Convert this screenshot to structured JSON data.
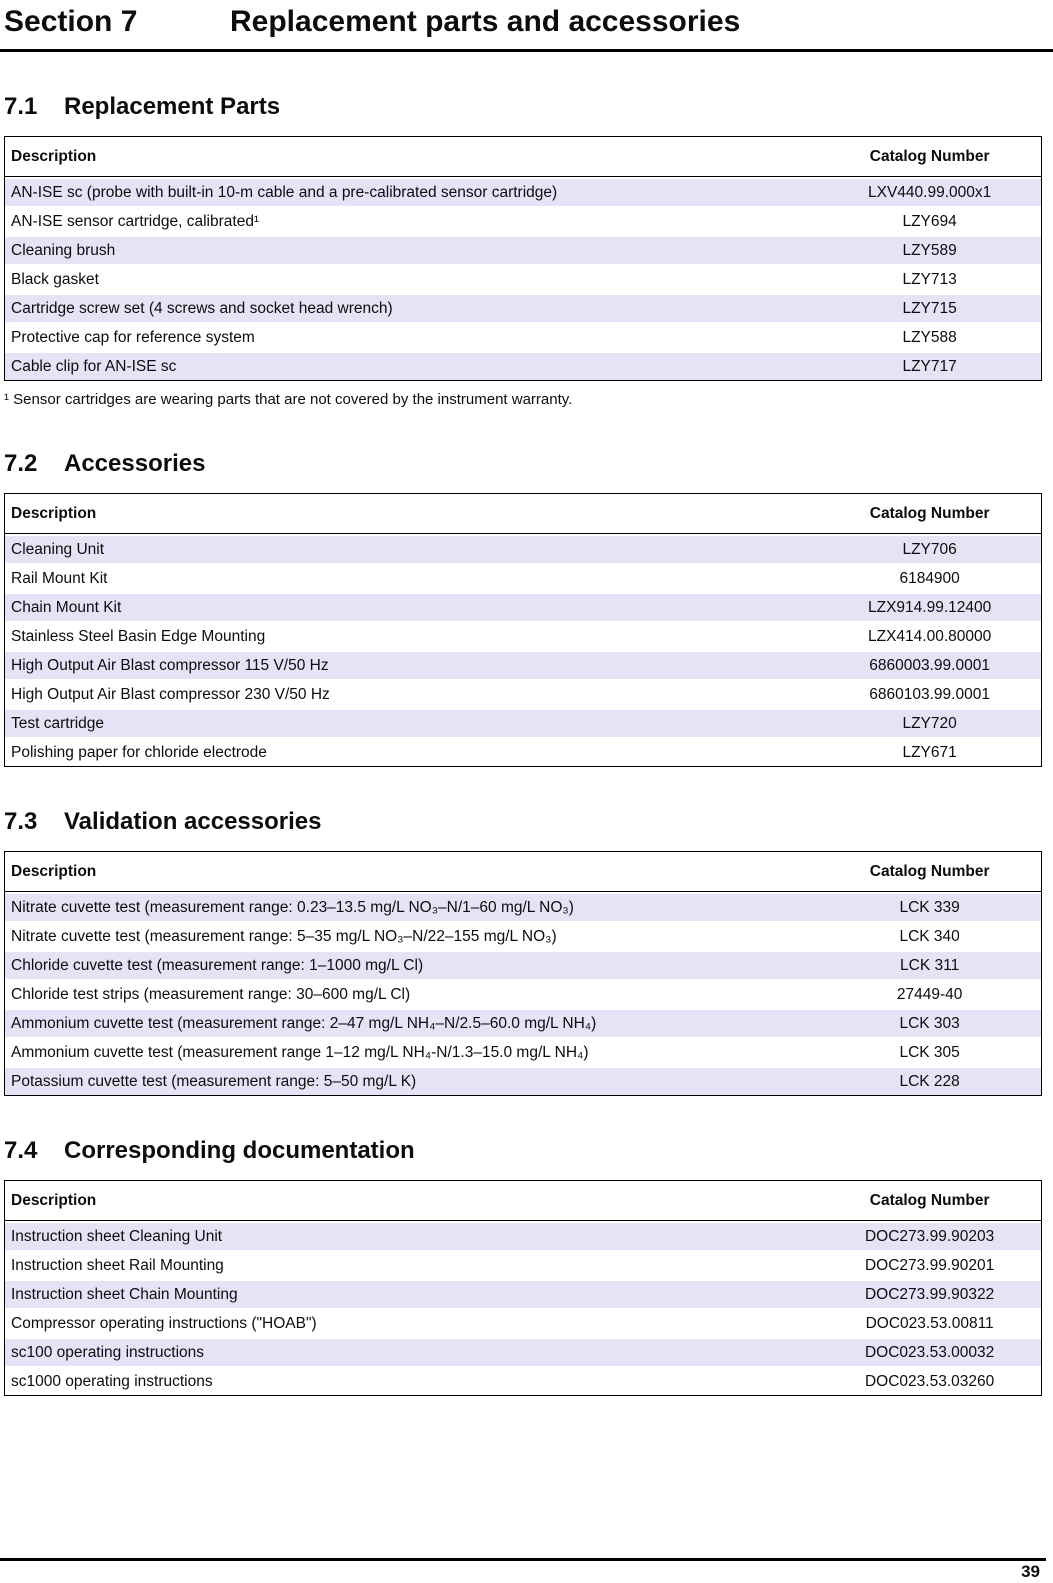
{
  "header": {
    "section_label": "Section 7",
    "section_title": "Replacement parts and accessories"
  },
  "columns": {
    "description": "Description",
    "catalog_number": "Catalog Number"
  },
  "sections": [
    {
      "number": "7.1",
      "title": "Replacement Parts",
      "rows": [
        {
          "description": "AN-ISE sc (probe with built-in 10-m cable and a pre-calibrated sensor cartridge)",
          "catalog": "LXV440.99.000x1"
        },
        {
          "description": "AN-ISE sensor cartridge, calibrated¹",
          "catalog": "LZY694"
        },
        {
          "description": "Cleaning brush",
          "catalog": "LZY589"
        },
        {
          "description": "Black gasket",
          "catalog": "LZY713"
        },
        {
          "description": "Cartridge screw set (4 screws and socket head wrench)",
          "catalog": "LZY715"
        },
        {
          "description": "Protective cap for reference system",
          "catalog": "LZY588"
        },
        {
          "description": "Cable clip for AN-ISE sc",
          "catalog": "LZY717"
        }
      ],
      "footnote": "¹ Sensor cartridges are wearing parts that are not covered by the instrument warranty."
    },
    {
      "number": "7.2",
      "title": "Accessories",
      "rows": [
        {
          "description": "Cleaning Unit",
          "catalog": "LZY706"
        },
        {
          "description": "Rail Mount Kit",
          "catalog": "6184900"
        },
        {
          "description": "Chain Mount Kit",
          "catalog": "LZX914.99.12400"
        },
        {
          "description": "Stainless Steel Basin Edge Mounting",
          "catalog": "LZX414.00.80000"
        },
        {
          "description": "High Output Air Blast compressor 115 V/50 Hz",
          "catalog": "6860003.99.0001"
        },
        {
          "description": "High Output Air Blast compressor 230 V/50 Hz",
          "catalog": "6860103.99.0001"
        },
        {
          "description": "Test cartridge",
          "catalog": "LZY720"
        },
        {
          "description": "Polishing paper for chloride electrode",
          "catalog": "LZY671"
        }
      ]
    },
    {
      "number": "7.3",
      "title": "Validation accessories",
      "rows": [
        {
          "description": "Nitrate cuvette test (measurement range: 0.23–13.5 mg/L NO₃–N/1–60 mg/L NO₃)",
          "catalog": "LCK 339"
        },
        {
          "description": "Nitrate cuvette test (measurement range: 5–35 mg/L NO₃–N/22–155 mg/L NO₃)",
          "catalog": "LCK 340"
        },
        {
          "description": "Chloride cuvette test (measurement range: 1–1000 mg/L Cl)",
          "catalog": "LCK 311"
        },
        {
          "description": "Chloride test strips (measurement range: 30–600 mg/L Cl)",
          "catalog": "27449-40"
        },
        {
          "description": "Ammonium cuvette test (measurement range: 2–47 mg/L NH₄–N/2.5–60.0 mg/L NH₄)",
          "catalog": "LCK 303"
        },
        {
          "description": "Ammonium cuvette test (measurement range 1–12 mg/L NH₄-N/1.3–15.0 mg/L NH₄)",
          "catalog": "LCK 305"
        },
        {
          "description": "Potassium cuvette test (measurement range: 5–50 mg/L K)",
          "catalog": "LCK 228"
        }
      ]
    },
    {
      "number": "7.4",
      "title": "Corresponding documentation",
      "rows": [
        {
          "description": "Instruction sheet Cleaning Unit",
          "catalog": "DOC273.99.90203"
        },
        {
          "description": "Instruction sheet Rail Mounting",
          "catalog": "DOC273.99.90201"
        },
        {
          "description": "Instruction sheet Chain Mounting",
          "catalog": "DOC273.99.90322"
        },
        {
          "description": "Compressor operating instructions (\"HOAB\")",
          "catalog": "DOC023.53.00811"
        },
        {
          "description": "sc100 operating instructions",
          "catalog": "DOC023.53.00032"
        },
        {
          "description": "sc1000 operating instructions",
          "catalog": "DOC023.53.03260"
        }
      ]
    }
  ],
  "footer": {
    "page_number": "39"
  }
}
